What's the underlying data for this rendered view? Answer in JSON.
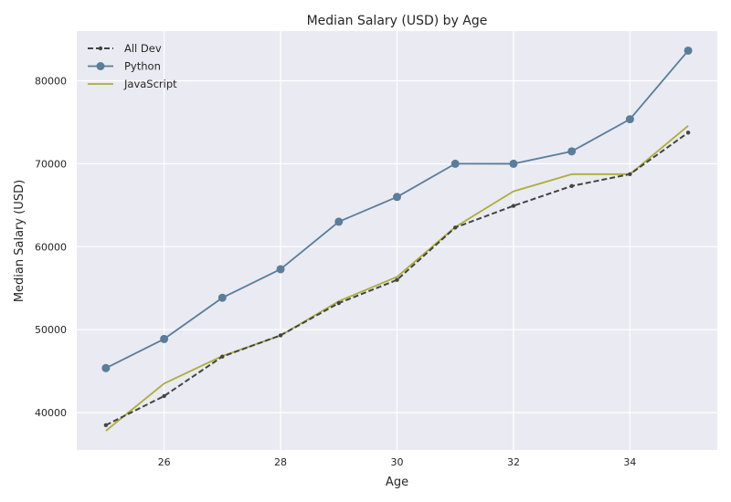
{
  "chart_data": {
    "type": "line",
    "title": "Median Salary (USD) by Age",
    "xlabel": "Age",
    "ylabel": "Median Salary (USD)",
    "x": [
      25,
      26,
      27,
      28,
      29,
      30,
      31,
      32,
      33,
      34,
      35
    ],
    "xlim": [
      24.5,
      35.5
    ],
    "ylim": [
      35500,
      86000
    ],
    "xticks": [
      26,
      28,
      30,
      32,
      34
    ],
    "yticks": [
      40000,
      50000,
      60000,
      70000,
      80000
    ],
    "grid": true,
    "legend_position": "top-left",
    "background": "#eaeaf2",
    "series": [
      {
        "name": "All Dev",
        "values": [
          38496,
          42000,
          46752,
          49320,
          53200,
          56000,
          62316,
          64928,
          67317,
          68748,
          73752
        ],
        "color": "#444444",
        "style": "dashed",
        "marker": "small-dot"
      },
      {
        "name": "Python",
        "values": [
          45372,
          48876,
          53850,
          57287,
          63016,
          65998,
          70003,
          70000,
          71496,
          75370,
          83640
        ],
        "color": "#5a7d9a",
        "style": "solid",
        "marker": "circle"
      },
      {
        "name": "JavaScript",
        "values": [
          37810,
          43515,
          46823,
          49293,
          53437,
          56373,
          62375,
          66674,
          68745,
          68746,
          74583
        ],
        "color": "#adad3b",
        "style": "solid",
        "marker": "none"
      }
    ]
  }
}
